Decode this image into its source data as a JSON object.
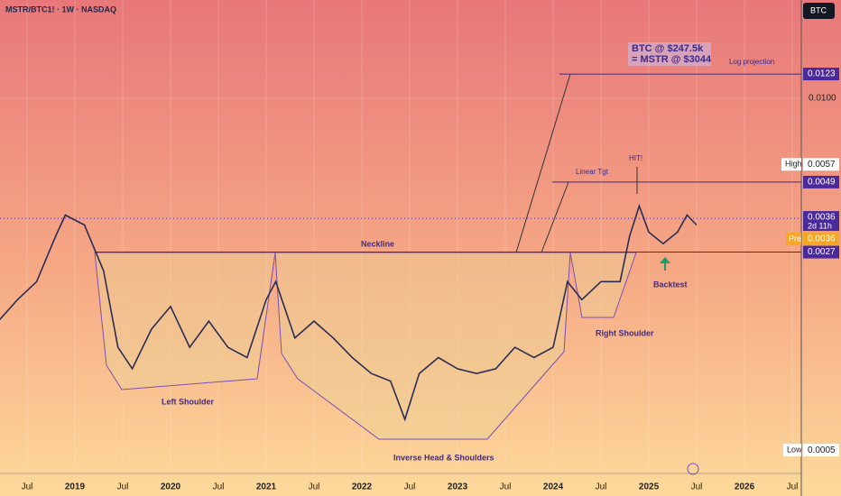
{
  "chart_data": {
    "type": "line",
    "title": "MSTR/BTC1! · 1W · NASDAQ",
    "symbol_button": "BTC",
    "log_scale": true,
    "xlim": [
      2018.217,
      2026.594
    ],
    "ylim": [
      0.00041,
      0.0231
    ],
    "xticks": [
      {
        "value": 2018.5,
        "label": "Jul"
      },
      2019,
      {
        "value": 2019.5,
        "label": "Jul"
      },
      2020,
      {
        "value": 2020.5,
        "label": "Jul"
      },
      2021,
      {
        "value": 2021.5,
        "label": "Jul"
      },
      2022,
      {
        "value": 2022.5,
        "label": "Jul"
      },
      2023,
      {
        "value": 2023.5,
        "label": "Jul"
      },
      2024,
      {
        "value": 2024.5,
        "label": "Jul"
      },
      2025,
      {
        "value": 2025.5,
        "label": "Jul"
      },
      2026,
      {
        "value": 2026.5,
        "label": "Jul"
      }
    ],
    "yticks": [
      {
        "value": 0.01,
        "label": "0.0100"
      }
    ],
    "levels": [
      0.0123,
      0.0049,
      0.0027
    ],
    "price_labels": {
      "high": {
        "label": "High",
        "value": 0.0057
      },
      "low": {
        "label": "Low",
        "value": 0.0005
      },
      "last": {
        "value": 0.0036,
        "countdown": "2d 11h"
      },
      "pre": {
        "label": "Pre",
        "value": 0.0036
      }
    },
    "series": [
      {
        "name": "MSTR/BTC1!",
        "color": "#2b2d55",
        "x": [
          2018.2,
          2018.4,
          2018.6,
          2018.8,
          2018.9,
          2019.1,
          2019.3,
          2019.45,
          2019.6,
          2019.8,
          2020.0,
          2020.2,
          2020.4,
          2020.6,
          2020.8,
          2021.0,
          2021.1,
          2021.3,
          2021.5,
          2021.7,
          2021.9,
          2022.1,
          2022.3,
          2022.45,
          2022.6,
          2022.8,
          2023.0,
          2023.2,
          2023.4,
          2023.6,
          2023.8,
          2024.0,
          2024.15,
          2024.3,
          2024.5,
          2024.7,
          2024.8,
          2024.9,
          2025.0,
          2025.15,
          2025.3,
          2025.4,
          2025.5
        ],
        "values": [
          0.0015,
          0.0018,
          0.0021,
          0.0031,
          0.0037,
          0.0034,
          0.0023,
          0.0012,
          0.001,
          0.0014,
          0.0017,
          0.0012,
          0.0015,
          0.0012,
          0.0011,
          0.0018,
          0.0021,
          0.0013,
          0.0015,
          0.0013,
          0.0011,
          0.00096,
          0.0009,
          0.00065,
          0.00096,
          0.0011,
          0.001,
          0.00096,
          0.001,
          0.0012,
          0.0011,
          0.0012,
          0.0021,
          0.0018,
          0.0021,
          0.0021,
          0.0031,
          0.004,
          0.0032,
          0.0029,
          0.0032,
          0.0037,
          0.0034
        ]
      }
    ],
    "annotations": {
      "btc_target": "BTC @ $247.5k",
      "mstr_target": "= MSTR @ $3044",
      "log_projection": "Log projection",
      "hit": "HIT!",
      "linear_target": "Linear Tgt",
      "neckline": "Neckline",
      "left_shoulder": "Left Shoulder",
      "head": "Inverse Head & Shoulders",
      "right_shoulder": "Right Shoulder",
      "backtest": "Backtest"
    }
  }
}
